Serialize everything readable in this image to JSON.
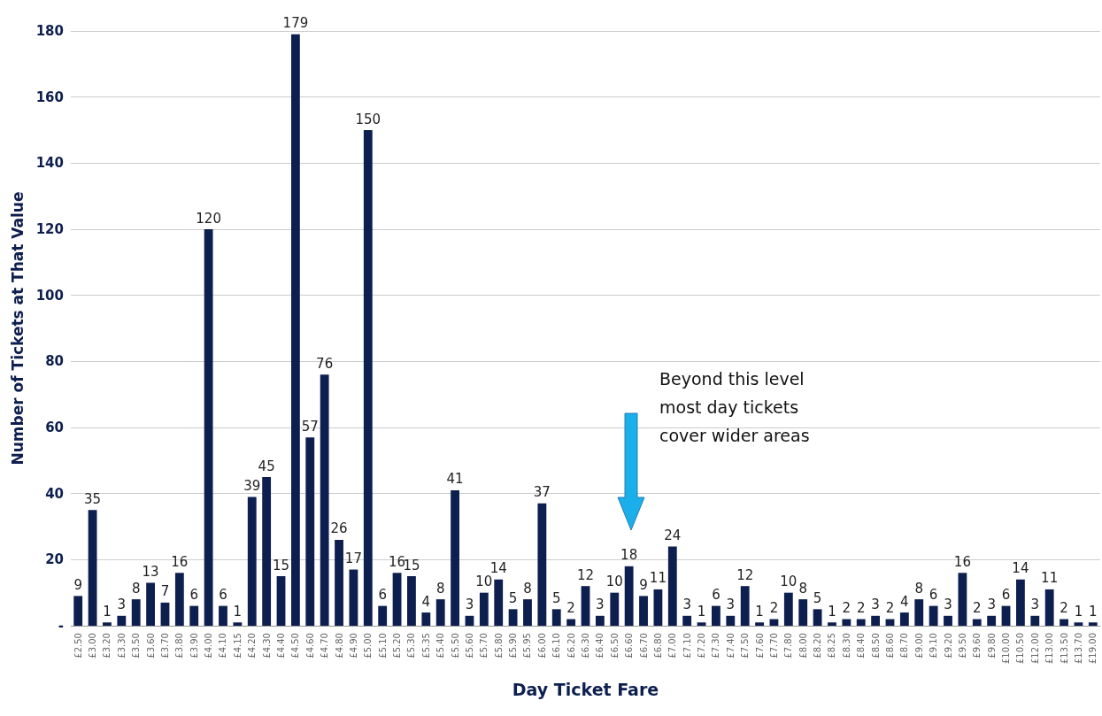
{
  "chart_data": {
    "type": "bar",
    "xlabel": "Day Ticket Fare",
    "ylabel": "Number of Tickets at That Value",
    "categories": [
      "£2.50",
      "£3.00",
      "£3.20",
      "£3.30",
      "£3.50",
      "£3.60",
      "£3.70",
      "£3.80",
      "£3.90",
      "£4.00",
      "£4.10",
      "£4.15",
      "£4.20",
      "£4.30",
      "£4.40",
      "£4.50",
      "£4.60",
      "£4.70",
      "£4.80",
      "£4.90",
      "£5.00",
      "£5.10",
      "£5.20",
      "£5.30",
      "£5.35",
      "£5.40",
      "£5.50",
      "£5.60",
      "£5.70",
      "£5.80",
      "£5.90",
      "£5.95",
      "£6.00",
      "£6.10",
      "£6.20",
      "£6.30",
      "£6.40",
      "£6.50",
      "£6.60",
      "£6.70",
      "£6.80",
      "£7.00",
      "£7.10",
      "£7.20",
      "£7.30",
      "£7.40",
      "£7.50",
      "£7.60",
      "£7.70",
      "£7.80",
      "£8.00",
      "£8.20",
      "£8.25",
      "£8.30",
      "£8.40",
      "£8.50",
      "£8.60",
      "£8.70",
      "£9.00",
      "£9.10",
      "£9.20",
      "£9.50",
      "£9.60",
      "£9.80",
      "£10.00",
      "£10.50",
      "£12.00",
      "£13.00",
      "£13.50",
      "£13.70",
      "£19.00"
    ],
    "values": [
      9,
      35,
      1,
      3,
      8,
      13,
      7,
      16,
      6,
      120,
      6,
      1,
      39,
      45,
      15,
      179,
      57,
      76,
      26,
      17,
      150,
      6,
      16,
      15,
      4,
      8,
      41,
      3,
      10,
      14,
      5,
      8,
      37,
      5,
      2,
      12,
      3,
      10,
      18,
      9,
      11,
      24,
      3,
      1,
      6,
      3,
      12,
      1,
      2,
      10,
      8,
      5,
      1,
      2,
      2,
      3,
      2,
      4,
      8,
      6,
      3,
      16,
      2,
      3,
      6,
      14,
      3,
      11,
      2,
      1,
      1
    ],
    "color": "#0d1f4f",
    "data_labels": true,
    "grid": "y",
    "ylim": [
      0,
      180
    ],
    "yticks": [
      {
        "value": 0,
        "label": "-"
      },
      20,
      40,
      60,
      80,
      100,
      120,
      140,
      160,
      180
    ],
    "annotations": [
      "Beyond this level\nmost day tickets\ncover wider areas"
    ]
  }
}
